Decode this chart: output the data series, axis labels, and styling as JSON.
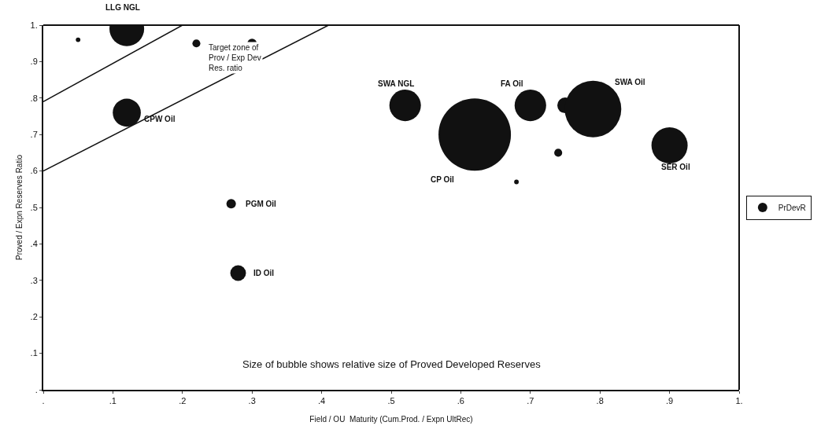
{
  "chart_data": {
    "type": "bubble",
    "xlabel": "Field / OU  Maturity (Cum.Prod. / Expn UltRec)",
    "ylabel": "Proved / Expn Reserves Ratio",
    "xlim": [
      0,
      1
    ],
    "ylim": [
      0,
      1
    ],
    "xticks": [
      {
        "value": 0,
        "label": "."
      },
      {
        "value": 0.1,
        "label": ".1"
      },
      {
        "value": 0.2,
        "label": ".2"
      },
      {
        "value": 0.3,
        "label": ".3"
      },
      {
        "value": 0.4,
        "label": ".4"
      },
      {
        "value": 0.5,
        "label": ".5"
      },
      {
        "value": 0.6,
        "label": ".6"
      },
      {
        "value": 0.7,
        "label": ".7"
      },
      {
        "value": 0.8,
        "label": ".8"
      },
      {
        "value": 0.9,
        "label": ".9"
      },
      {
        "value": 1,
        "label": "1."
      }
    ],
    "yticks": [
      {
        "value": 0,
        "label": "."
      },
      {
        "value": 0.1,
        "label": ".1"
      },
      {
        "value": 0.2,
        "label": ".2"
      },
      {
        "value": 0.3,
        "label": ".3"
      },
      {
        "value": 0.4,
        "label": ".4"
      },
      {
        "value": 0.5,
        "label": ".5"
      },
      {
        "value": 0.6,
        "label": ".6"
      },
      {
        "value": 0.7,
        "label": ".7"
      },
      {
        "value": 0.8,
        "label": ".8"
      },
      {
        "value": 0.9,
        "label": ".9"
      },
      {
        "value": 1,
        "label": "1."
      }
    ],
    "legend": "right",
    "series": [
      {
        "name": "PrDevR",
        "color": "#111111",
        "x": [
          0.12,
          0.05,
          0.22,
          0.3,
          0.12,
          0.52,
          0.62,
          0.7,
          0.75,
          0.79,
          0.74,
          0.68,
          0.9,
          0.27,
          0.28
        ],
        "values": [
          0.99,
          0.96,
          0.95,
          0.95,
          0.76,
          0.78,
          0.7,
          0.78,
          0.78,
          0.77,
          0.65,
          0.57,
          0.67,
          0.51,
          0.32
        ],
        "sizes": [
          0.23,
          0.004,
          0.012,
          0.017,
          0.15,
          0.19,
          1,
          0.19,
          0.047,
          0.61,
          0.012,
          0.004,
          0.25,
          0.017,
          0.047
        ]
      },
      {
        "type": "line",
        "color": "#111111",
        "x": [
          0,
          0.2
        ],
        "values": [
          0.79,
          1
        ]
      },
      {
        "type": "line",
        "color": "#111111",
        "x": [
          0,
          0.41
        ],
        "values": [
          0.6,
          1
        ]
      }
    ],
    "annotations": [
      {
        "text": "LLG NGL",
        "x": 0.12,
        "y": 0.99
      },
      {
        "text": "CPW Oil",
        "x": 0.12,
        "y": 0.76
      },
      {
        "text": "SWA NGL",
        "x": 0.52,
        "y": 0.78
      },
      "CP Oil",
      {
        "text": "FA Oil",
        "x": 0.7,
        "y": 0.78
      },
      "SWA Oil",
      {
        "text": "SER Oil",
        "x": 0.9,
        "y": 0.67
      },
      {
        "text": "PGM Oil",
        "x": 0.27,
        "y": 0.51
      },
      {
        "text": "ID Oil",
        "x": 0.28,
        "y": 0.32
      },
      "Target zone of\nProv / Exp Dev\nRes. ratio",
      "Size of bubble shows relative size of Proved Developed Reserves"
    ]
  }
}
